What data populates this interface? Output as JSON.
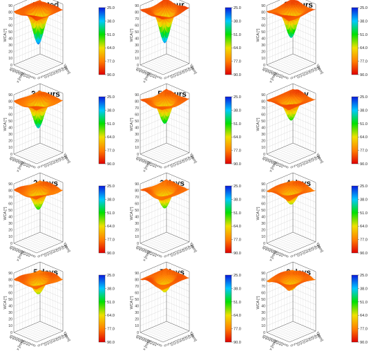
{
  "chart_data": {
    "type": "surface3d",
    "zlabel": "WCA [°]",
    "xlabel": "x [mm]",
    "ylabel": "Y[mm]",
    "zlim": [
      0,
      90
    ],
    "z_ticks": [
      "0",
      "10",
      "20",
      "30",
      "40",
      "50",
      "60",
      "70",
      "80",
      "90"
    ],
    "xy_ticks": [
      "0",
      "5",
      "10",
      "15",
      "20",
      "25",
      "30",
      "35",
      "40",
      "45"
    ],
    "colorbar": {
      "ticks": [
        "25.0",
        "38.0",
        "51.0",
        "64.0",
        "77.0",
        "90.0"
      ],
      "colors_top_to_bottom": [
        "#0a1adc",
        "#00c8ff",
        "#00e000",
        "#f0e000",
        "#ff8000",
        "#e00000"
      ]
    },
    "panels": [
      {
        "title": "treated",
        "plateau_wca": 82,
        "center_min_wca": 30
      },
      {
        "title": "1 hour",
        "plateau_wca": 83,
        "center_min_wca": 32
      },
      {
        "title": "2 hours",
        "plateau_wca": 82,
        "center_min_wca": 40
      },
      {
        "title": "3 hours",
        "plateau_wca": 80,
        "center_min_wca": 38
      },
      {
        "title": "5 hours",
        "plateau_wca": 81,
        "center_min_wca": 45
      },
      {
        "title": "1 day",
        "plateau_wca": 82,
        "center_min_wca": 50
      },
      {
        "title": "2 days",
        "plateau_wca": 80,
        "center_min_wca": 50
      },
      {
        "title": "3 days",
        "plateau_wca": 80,
        "center_min_wca": 52
      },
      {
        "title": "4 days",
        "plateau_wca": 80,
        "center_min_wca": 58
      },
      {
        "title": "5 days",
        "plateau_wca": 80,
        "center_min_wca": 57
      },
      {
        "title": "7 days",
        "plateau_wca": 81,
        "center_min_wca": 60
      },
      {
        "title": "8 days",
        "plateau_wca": 80,
        "center_min_wca": 63
      }
    ]
  }
}
